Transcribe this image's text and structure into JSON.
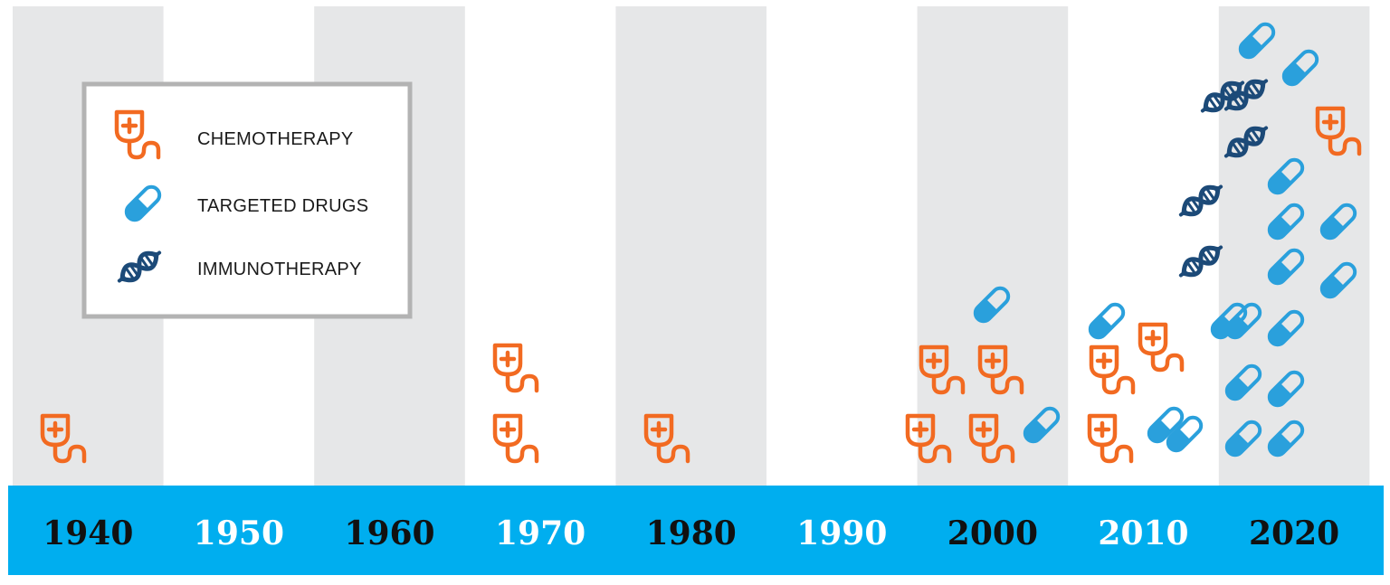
{
  "colors": {
    "chemotherapy": "#f26a21",
    "targeted_drugs": "#2aa0dc",
    "immunotherapy": "#1c4a78",
    "band_shade": "#e6e7e8",
    "timeline_bar": "#00aeef",
    "label_dark": "#111111",
    "label_light": "#ffffff",
    "legend_border": "#b3b3b3"
  },
  "legend": {
    "items": [
      {
        "key": "chemotherapy",
        "label": "CHEMOTHERAPY",
        "icon": "iv-bag-icon"
      },
      {
        "key": "targeted_drugs",
        "label": "TARGETED DRUGS",
        "icon": "pill-capsule-icon"
      },
      {
        "key": "immunotherapy",
        "label": "IMMUNOTHERAPY",
        "icon": "dna-icon"
      }
    ]
  },
  "chart_data": {
    "type": "pictogram",
    "x_axis_labels": [
      "1940",
      "1950",
      "1960",
      "1970",
      "1980",
      "1990",
      "2000",
      "2010",
      "2020"
    ],
    "shaded_decades": [
      "1940",
      "1960",
      "1980",
      "2000",
      "2020"
    ],
    "series": [
      {
        "name": "CHEMOTHERAPY",
        "key": "chemotherapy",
        "values": [
          1,
          0,
          0,
          2,
          1,
          0,
          4,
          3,
          1
        ]
      },
      {
        "name": "TARGETED DRUGS",
        "key": "targeted_drugs",
        "values": [
          0,
          0,
          0,
          0,
          0,
          0,
          2,
          3,
          14
        ]
      },
      {
        "name": "IMMUNOTHERAPY",
        "key": "immunotherapy",
        "values": [
          0,
          0,
          0,
          0,
          0,
          0,
          0,
          0,
          5
        ]
      }
    ]
  }
}
